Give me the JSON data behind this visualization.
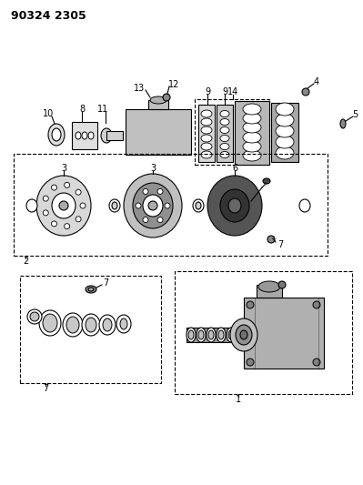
{
  "title": "90324 2305",
  "bg_color": "#ffffff",
  "line_color": "#000000",
  "fig_width": 3.99,
  "fig_height": 5.33,
  "dpi": 100,
  "title_fontsize": 9,
  "label_fontsize": 7
}
